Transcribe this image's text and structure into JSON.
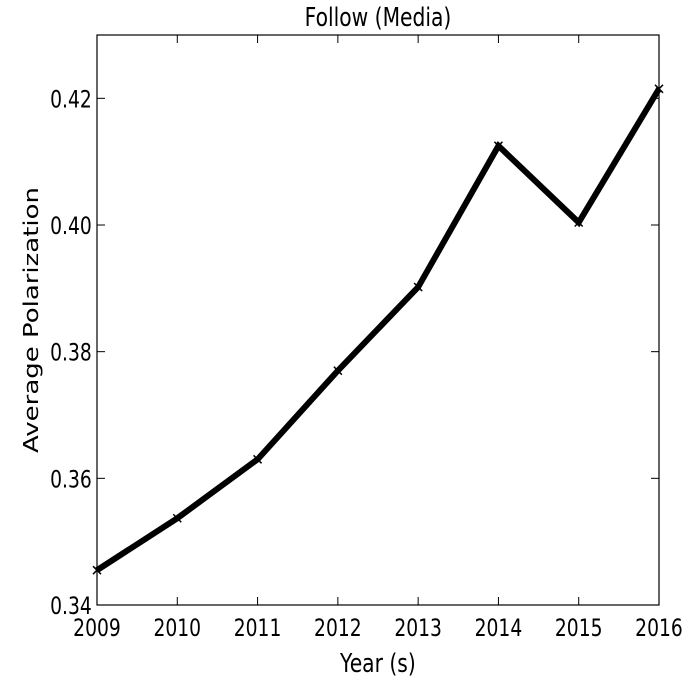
{
  "chart_data": {
    "type": "line",
    "title": "Follow (Media)",
    "xlabel": "Year (s)",
    "ylabel": "Average Polarization",
    "x": [
      2009,
      2010,
      2011,
      2012,
      2013,
      2014,
      2015,
      2016
    ],
    "series": [
      {
        "values": [
          0.3455,
          0.3537,
          0.363,
          0.377,
          0.3902,
          0.4125,
          0.4004,
          0.4215
        ],
        "color": "#000000",
        "marker": "x"
      }
    ],
    "xlim": [
      2009,
      2016
    ],
    "ylim": [
      0.34,
      0.43
    ],
    "xticks": [
      2009,
      2010,
      2011,
      2012,
      2013,
      2014,
      2015,
      2016
    ],
    "yticks": [
      0.34,
      0.36,
      0.38,
      0.4,
      0.42
    ],
    "xtick_labels": [
      "2009",
      "2010",
      "2011",
      "2012",
      "2013",
      "2014",
      "2015",
      "2016"
    ],
    "ytick_labels": [
      "0.34",
      "0.36",
      "0.38",
      "0.40",
      "0.42"
    ],
    "grid": false,
    "legend": "none"
  }
}
